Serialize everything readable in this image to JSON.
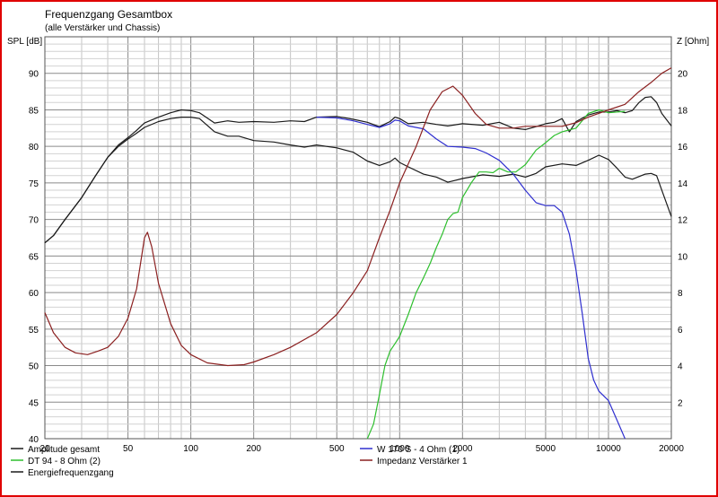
{
  "chart_data": {
    "type": "line",
    "title": "Frequenzgang Gesamtbox",
    "subtitle": "(alle Verstärker und Chassis)",
    "ylabel_left": "SPL [dB]",
    "ylabel_right": "Z [Ohm]",
    "x_scale": "log",
    "xlim": [
      20,
      20000
    ],
    "ylim_left": [
      40,
      95
    ],
    "ylim_right": [
      0,
      22
    ],
    "x_ticks": [
      20,
      50,
      100,
      200,
      500,
      1000,
      2000,
      5000,
      10000,
      20000
    ],
    "x_tick_labels": [
      "20",
      "50",
      "100",
      "200",
      "500",
      "1000",
      "2000",
      "5000",
      "10000",
      "20000"
    ],
    "y_left_ticks": [
      40,
      45,
      50,
      55,
      60,
      65,
      70,
      75,
      80,
      85,
      90
    ],
    "y_left_tick_labels": [
      "40",
      "45",
      "50",
      "55",
      "60",
      "65",
      "70",
      "75",
      "80",
      "85",
      "90"
    ],
    "y_right_ticks": [
      2,
      4,
      6,
      8,
      10,
      12,
      14,
      16,
      18,
      20
    ],
    "y_right_tick_labels": [
      "2",
      "4",
      "6",
      "8",
      "10",
      "12",
      "14",
      "16",
      "18",
      "20"
    ],
    "grid": true,
    "legend_position": "bottom",
    "series": [
      {
        "name": "Amplitude gesamt",
        "axis": "left",
        "color": "#1a1a1a",
        "points": [
          [
            20,
            66.8
          ],
          [
            22,
            67.8
          ],
          [
            25,
            70
          ],
          [
            30,
            73
          ],
          [
            35,
            76
          ],
          [
            40,
            78.5
          ],
          [
            45,
            80
          ],
          [
            50,
            81
          ],
          [
            55,
            81.8
          ],
          [
            60,
            82.6
          ],
          [
            70,
            83.4
          ],
          [
            80,
            83.8
          ],
          [
            90,
            84
          ],
          [
            100,
            84
          ],
          [
            110,
            83.8
          ],
          [
            130,
            82
          ],
          [
            150,
            81.4
          ],
          [
            170,
            81.4
          ],
          [
            200,
            80.8
          ],
          [
            250,
            80.6
          ],
          [
            300,
            80.2
          ],
          [
            350,
            79.9
          ],
          [
            400,
            80.2
          ],
          [
            500,
            79.8
          ],
          [
            600,
            79.2
          ],
          [
            700,
            78
          ],
          [
            800,
            77.4
          ],
          [
            900,
            77.9
          ],
          [
            950,
            78.4
          ],
          [
            1000,
            77.8
          ],
          [
            1100,
            77.2
          ],
          [
            1300,
            76.2
          ],
          [
            1500,
            75.8
          ],
          [
            1700,
            75.1
          ],
          [
            2000,
            75.6
          ],
          [
            2500,
            76.1
          ],
          [
            3000,
            75.9
          ],
          [
            3500,
            76.2
          ],
          [
            4000,
            75.8
          ],
          [
            4500,
            76.3
          ],
          [
            5000,
            77.2
          ],
          [
            6000,
            77.6
          ],
          [
            7000,
            77.4
          ],
          [
            8000,
            78.1
          ],
          [
            9000,
            78.8
          ],
          [
            10000,
            78.2
          ],
          [
            11000,
            77
          ],
          [
            12000,
            75.8
          ],
          [
            13000,
            75.5
          ],
          [
            15000,
            76.2
          ],
          [
            16000,
            76.3
          ],
          [
            17000,
            76
          ],
          [
            18000,
            74
          ],
          [
            20000,
            70.4
          ]
        ]
      },
      {
        "name": "Energiefrequenzgang",
        "axis": "left",
        "color": "#1a1a1a",
        "points": [
          [
            20,
            66.8
          ],
          [
            22,
            67.8
          ],
          [
            25,
            70
          ],
          [
            30,
            73
          ],
          [
            35,
            76
          ],
          [
            40,
            78.5
          ],
          [
            45,
            80.2
          ],
          [
            50,
            81.2
          ],
          [
            55,
            82.2
          ],
          [
            60,
            83.2
          ],
          [
            70,
            84
          ],
          [
            80,
            84.6
          ],
          [
            90,
            85
          ],
          [
            100,
            84.9
          ],
          [
            110,
            84.6
          ],
          [
            130,
            83.2
          ],
          [
            150,
            83.5
          ],
          [
            170,
            83.3
          ],
          [
            200,
            83.4
          ],
          [
            250,
            83.3
          ],
          [
            300,
            83.5
          ],
          [
            350,
            83.4
          ],
          [
            400,
            84
          ],
          [
            500,
            84.1
          ],
          [
            600,
            83.7
          ],
          [
            700,
            83.3
          ],
          [
            800,
            82.7
          ],
          [
            900,
            83.4
          ],
          [
            950,
            84
          ],
          [
            1000,
            83.8
          ],
          [
            1100,
            83.1
          ],
          [
            1300,
            83.3
          ],
          [
            1500,
            83
          ],
          [
            1700,
            82.8
          ],
          [
            2000,
            83.1
          ],
          [
            2500,
            82.9
          ],
          [
            3000,
            83.3
          ],
          [
            3500,
            82.5
          ],
          [
            4000,
            82.3
          ],
          [
            4500,
            82.7
          ],
          [
            5000,
            83.1
          ],
          [
            5500,
            83.3
          ],
          [
            6000,
            83.8
          ],
          [
            6500,
            82
          ],
          [
            7000,
            83.4
          ],
          [
            8000,
            84.3
          ],
          [
            9000,
            84.7
          ],
          [
            10000,
            84.7
          ],
          [
            11000,
            84.9
          ],
          [
            12000,
            84.6
          ],
          [
            13000,
            84.9
          ],
          [
            14000,
            86
          ],
          [
            15000,
            86.7
          ],
          [
            16000,
            86.8
          ],
          [
            17000,
            86
          ],
          [
            18000,
            84.5
          ],
          [
            20000,
            82.8
          ]
        ]
      },
      {
        "name": "W 170 S - 4 Ohm (1)",
        "axis": "left",
        "color": "#2f2fcf",
        "points": [
          [
            400,
            84
          ],
          [
            500,
            83.9
          ],
          [
            600,
            83.5
          ],
          [
            700,
            83
          ],
          [
            800,
            82.6
          ],
          [
            900,
            83.1
          ],
          [
            950,
            83.6
          ],
          [
            1000,
            83.5
          ],
          [
            1100,
            82.8
          ],
          [
            1300,
            82.4
          ],
          [
            1500,
            81
          ],
          [
            1700,
            80
          ],
          [
            2000,
            79.9
          ],
          [
            2300,
            79.7
          ],
          [
            2600,
            79.1
          ],
          [
            3000,
            78.1
          ],
          [
            3500,
            76.2
          ],
          [
            4000,
            74
          ],
          [
            4500,
            72.3
          ],
          [
            5000,
            71.9
          ],
          [
            5500,
            71.9
          ],
          [
            6000,
            71
          ],
          [
            6500,
            68
          ],
          [
            7000,
            63
          ],
          [
            7500,
            57
          ],
          [
            8000,
            51
          ],
          [
            8500,
            48
          ],
          [
            9000,
            46.5
          ],
          [
            10000,
            45.2
          ],
          [
            11000,
            42.5
          ],
          [
            12000,
            40
          ]
        ]
      },
      {
        "name": "DT 94 - 8 Ohm (2)",
        "axis": "left",
        "color": "#2ebf2e",
        "points": [
          [
            700,
            40
          ],
          [
            750,
            42
          ],
          [
            800,
            46
          ],
          [
            850,
            50
          ],
          [
            900,
            52
          ],
          [
            950,
            53
          ],
          [
            1000,
            54
          ],
          [
            1100,
            57
          ],
          [
            1200,
            60
          ],
          [
            1300,
            62
          ],
          [
            1400,
            64
          ],
          [
            1500,
            66.2
          ],
          [
            1600,
            68
          ],
          [
            1700,
            70
          ],
          [
            1800,
            70.8
          ],
          [
            1900,
            71
          ],
          [
            2000,
            73
          ],
          [
            2200,
            75
          ],
          [
            2400,
            76.5
          ],
          [
            2600,
            76.5
          ],
          [
            2800,
            76.4
          ],
          [
            3000,
            77
          ],
          [
            3300,
            76.5
          ],
          [
            3600,
            76.5
          ],
          [
            4000,
            77.5
          ],
          [
            4500,
            79.5
          ],
          [
            5000,
            80.5
          ],
          [
            5500,
            81.5
          ],
          [
            6000,
            82
          ],
          [
            7000,
            82.5
          ],
          [
            8000,
            84.5
          ],
          [
            9000,
            85
          ],
          [
            10000,
            84.6
          ],
          [
            12000,
            84.8
          ]
        ]
      },
      {
        "name": "Impedanz Verstärker 1",
        "axis": "right",
        "color": "#8b2020",
        "points": [
          [
            20,
            6.9
          ],
          [
            22,
            5.8
          ],
          [
            25,
            5
          ],
          [
            28,
            4.7
          ],
          [
            32,
            4.6
          ],
          [
            36,
            4.8
          ],
          [
            40,
            5
          ],
          [
            45,
            5.6
          ],
          [
            50,
            6.6
          ],
          [
            55,
            8.2
          ],
          [
            60,
            11
          ],
          [
            62,
            11.3
          ],
          [
            65,
            10.5
          ],
          [
            70,
            8.5
          ],
          [
            80,
            6.3
          ],
          [
            90,
            5.1
          ],
          [
            100,
            4.6
          ],
          [
            120,
            4.15
          ],
          [
            150,
            4.0
          ],
          [
            180,
            4.05
          ],
          [
            200,
            4.2
          ],
          [
            250,
            4.6
          ],
          [
            300,
            5
          ],
          [
            400,
            5.8
          ],
          [
            500,
            6.8
          ],
          [
            600,
            8
          ],
          [
            700,
            9.2
          ],
          [
            800,
            11
          ],
          [
            900,
            12.5
          ],
          [
            1000,
            14
          ],
          [
            1200,
            16
          ],
          [
            1400,
            18
          ],
          [
            1600,
            19
          ],
          [
            1800,
            19.3
          ],
          [
            2000,
            18.8
          ],
          [
            2300,
            17.8
          ],
          [
            2600,
            17.2
          ],
          [
            3000,
            17
          ],
          [
            3500,
            17
          ],
          [
            4000,
            17.1
          ],
          [
            5000,
            17.1
          ],
          [
            6000,
            17.1
          ],
          [
            7000,
            17.3
          ],
          [
            8000,
            17.6
          ],
          [
            10000,
            18
          ],
          [
            12000,
            18.3
          ],
          [
            14000,
            19
          ],
          [
            16000,
            19.5
          ],
          [
            18000,
            20
          ],
          [
            20000,
            20.3
          ]
        ]
      }
    ]
  }
}
